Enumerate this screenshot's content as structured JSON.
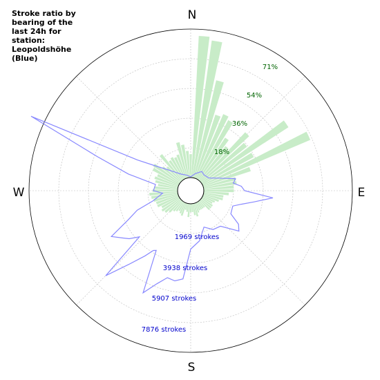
{
  "chart_data": {
    "type": "polar-bar-line",
    "title": "Stroke ratio by\nbearing of the\nlast 24h for\nstation:\nLeopoldshöhe\n(Blue)",
    "directions": {
      "n": "N",
      "e": "E",
      "s": "S",
      "w": "W"
    },
    "ratio_ticks": [
      "18%",
      "36%",
      "54%",
      "71%"
    ],
    "count_ticks": [
      "1969 strokes",
      "3938 strokes",
      "5907 strokes",
      "7876 strokes"
    ],
    "ratio_max": 89,
    "count_max": 9845,
    "bearing_step": 5,
    "ratio_series": {
      "name": "Stroke ratio",
      "color": "#c8ecc8",
      "values": [
        0,
        85,
        83,
        60,
        40,
        42,
        40,
        30,
        22,
        40,
        35,
        62,
        35,
        70,
        30,
        20,
        20,
        18,
        18,
        15,
        12,
        12,
        10,
        8,
        7,
        8,
        8,
        8,
        5,
        5,
        5,
        5,
        6,
        8,
        7,
        5,
        5,
        8,
        5,
        4,
        8,
        7,
        6,
        7,
        8,
        10,
        12,
        13,
        12,
        14,
        14,
        15,
        16,
        17,
        15,
        14,
        12,
        14,
        15,
        14,
        18,
        19,
        14,
        12,
        20,
        14,
        15,
        14,
        15,
        22,
        20,
        16,
        14,
        22,
        26,
        22,
        26,
        27,
        27,
        27,
        26,
        20,
        10,
        5,
        3,
        2,
        1,
        1,
        1,
        1,
        1,
        1,
        1,
        0,
        0,
        0,
        0,
        0,
        0,
        0,
        0,
        0,
        0,
        0,
        0,
        0,
        0,
        0,
        0,
        0,
        0,
        0,
        0,
        0,
        0,
        0,
        0,
        0,
        0,
        0,
        0,
        0,
        0,
        0,
        0,
        0,
        0,
        0,
        0,
        0,
        0,
        0,
        0,
        0,
        0,
        0,
        0,
        0,
        0,
        0,
        0,
        0,
        0,
        0,
        0,
        0,
        0,
        0,
        0,
        0,
        0,
        0,
        0,
        0,
        0,
        0,
        0,
        0,
        0,
        0,
        0,
        0,
        0,
        0,
        0,
        0,
        0,
        0,
        0,
        0,
        0,
        0,
        0,
        0,
        0,
        0,
        0,
        0,
        0,
        0,
        0,
        0,
        0,
        0,
        0,
        0
      ]
    },
    "count_series": {
      "name": "Leopoldshöhe (Blue)",
      "color": "#8888ff",
      "points": [
        [
          0,
          50
        ],
        [
          15,
          300
        ],
        [
          30,
          600
        ],
        [
          40,
          500
        ],
        [
          55,
          600
        ],
        [
          65,
          1100
        ],
        [
          75,
          2200
        ],
        [
          80,
          2000
        ],
        [
          85,
          2500
        ],
        [
          90,
          2700
        ],
        [
          95,
          4600
        ],
        [
          100,
          3400
        ],
        [
          105,
          2600
        ],
        [
          110,
          2100
        ],
        [
          120,
          2200
        ],
        [
          125,
          3000
        ],
        [
          130,
          3300
        ],
        [
          140,
          2200
        ],
        [
          150,
          2100
        ],
        [
          160,
          1700
        ],
        [
          170,
          2500
        ],
        [
          180,
          3000
        ],
        [
          185,
          5000
        ],
        [
          190,
          5200
        ],
        [
          195,
          5100
        ],
        [
          200,
          5700
        ],
        [
          205,
          6600
        ],
        [
          210,
          3700
        ],
        [
          212,
          3800
        ],
        [
          215,
          4400
        ],
        [
          220,
          5500
        ],
        [
          225,
          7100
        ],
        [
          228,
          3700
        ],
        [
          232,
          4300
        ],
        [
          235,
          4600
        ],
        [
          240,
          5200
        ],
        [
          245,
          3700
        ],
        [
          250,
          2900
        ],
        [
          255,
          1700
        ],
        [
          265,
          1000
        ],
        [
          270,
          1600
        ],
        [
          280,
          1500
        ],
        [
          285,
          3400
        ],
        [
          290,
          5700
        ],
        [
          295,
          10800
        ],
        [
          300,
          3200
        ],
        [
          305,
          2000
        ],
        [
          315,
          1000
        ],
        [
          330,
          400
        ],
        [
          345,
          200
        ],
        [
          360,
          50
        ]
      ]
    }
  }
}
